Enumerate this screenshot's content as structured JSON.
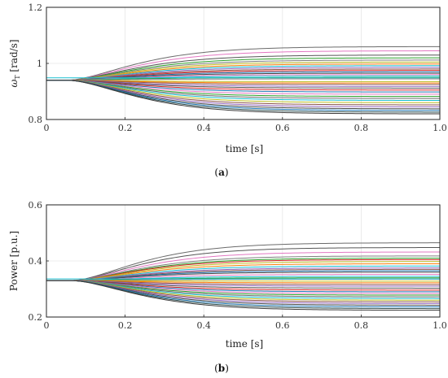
{
  "chart_data": [
    {
      "type": "line",
      "xlabel": "time [s]",
      "ylabel_main": "ω",
      "ylabel_sub": "T",
      "ylabel_rest": " [rad/s]",
      "xlim": [
        0,
        1.0
      ],
      "ylim": [
        0.8,
        1.2
      ],
      "x_ticks": [
        "0",
        "0.2",
        "0.4",
        "0.6",
        "0.8",
        "1.0"
      ],
      "y_ticks": [
        "0.8",
        "1",
        "1.2"
      ],
      "y_tick_values": [
        0.8,
        1.0,
        1.2
      ],
      "grid": true,
      "caption": "(a)",
      "caption_letter": "a",
      "step_time": 0.05,
      "initial_value": 0.94,
      "final_values": [
        1.06,
        1.045,
        1.03,
        1.02,
        1.012,
        1.005,
        0.998,
        0.992,
        0.986,
        0.98,
        0.975,
        0.97,
        0.965,
        0.96,
        0.955,
        0.95,
        0.945,
        0.935,
        0.93,
        0.925,
        0.918,
        0.912,
        0.905,
        0.898,
        0.89,
        0.882,
        0.875,
        0.868,
        0.86,
        0.852,
        0.845,
        0.838,
        0.832,
        0.826,
        0.82
      ],
      "colors": [
        "#6b6b6b",
        "#e377c2",
        "#555555",
        "#2ca02c",
        "#7f7f7f",
        "#bcbd22",
        "#ff7f0e",
        "#17becf",
        "#9467bd",
        "#8c564b",
        "#d62728",
        "#1f77b4",
        "#4a4a4a",
        "#e377c2",
        "#17becf",
        "#2ca02c",
        "#7f7f7f",
        "#bcbd22",
        "#ff7f0e",
        "#8c564b",
        "#9467bd",
        "#555555",
        "#d62728",
        "#1f77b4",
        "#e377c2",
        "#2ca02c",
        "#6b6b6b",
        "#17becf",
        "#bcbd22",
        "#8c564b",
        "#9467bd",
        "#4a4a4a",
        "#1f77b4",
        "#2f4f4f",
        "#3a3a3a"
      ]
    },
    {
      "type": "line",
      "xlabel": "time [s]",
      "ylabel": "Power [p.u.]",
      "xlim": [
        0,
        1.0
      ],
      "ylim": [
        0.2,
        0.6
      ],
      "x_ticks": [
        "0",
        "0.2",
        "0.4",
        "0.6",
        "0.8",
        "1.0"
      ],
      "y_ticks": [
        "0.2",
        "0.4",
        "0.6"
      ],
      "y_tick_values": [
        0.2,
        0.4,
        0.6
      ],
      "grid": true,
      "caption": "(b)",
      "caption_letter": "b",
      "step_time": 0.06,
      "initial_value": 0.33,
      "final_values": [
        0.465,
        0.448,
        0.432,
        0.418,
        0.41,
        0.405,
        0.398,
        0.39,
        0.382,
        0.375,
        0.37,
        0.365,
        0.36,
        0.352,
        0.345,
        0.34,
        0.335,
        0.328,
        0.322,
        0.316,
        0.31,
        0.303,
        0.296,
        0.29,
        0.284,
        0.278,
        0.272,
        0.266,
        0.26,
        0.254,
        0.248,
        0.242,
        0.236,
        0.23,
        0.224
      ],
      "colors": [
        "#6b6b6b",
        "#555555",
        "#e377c2",
        "#7f7f7f",
        "#2ca02c",
        "#d62728",
        "#bcbd22",
        "#ff7f0e",
        "#17becf",
        "#9467bd",
        "#8c564b",
        "#1f77b4",
        "#4a4a4a",
        "#e377c2",
        "#17becf",
        "#2ca02c",
        "#7f7f7f",
        "#bcbd22",
        "#ff7f0e",
        "#8c564b",
        "#9467bd",
        "#555555",
        "#d62728",
        "#1f77b4",
        "#e377c2",
        "#2ca02c",
        "#6b6b6b",
        "#17becf",
        "#bcbd22",
        "#8c564b",
        "#9467bd",
        "#4a4a4a",
        "#1f77b4",
        "#2f4f4f",
        "#3a3a3a"
      ]
    }
  ]
}
